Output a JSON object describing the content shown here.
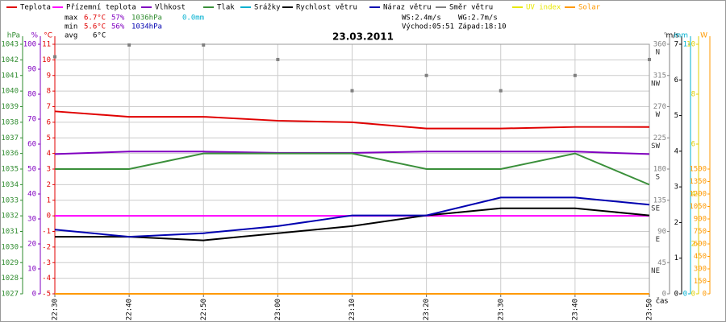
{
  "chart_data": {
    "type": "line",
    "title": "23.03.2011",
    "x_label": "čas",
    "categories": [
      "22:30",
      "22:40",
      "22:50",
      "23:00",
      "23:10",
      "23:20",
      "23:30",
      "23:40",
      "23:50"
    ],
    "grid": true,
    "axes": [
      {
        "id": "press",
        "side": "left",
        "unit": "hPa",
        "color": "#2e8b2e",
        "ylim": [
          1027,
          1043
        ],
        "yticks": [
          1027,
          1028,
          1029,
          1030,
          1031,
          1032,
          1033,
          1034,
          1035,
          1036,
          1037,
          1038,
          1039,
          1040,
          1041,
          1042,
          1043
        ]
      },
      {
        "id": "hum",
        "side": "left",
        "unit": "%",
        "color": "#8000c0",
        "ylim": [
          0,
          100
        ],
        "yticks": [
          0,
          10,
          20,
          30,
          40,
          50,
          60,
          70,
          80,
          90,
          100
        ]
      },
      {
        "id": "temp",
        "side": "left",
        "unit": "°C",
        "color": "#e00000",
        "ylim": [
          -5,
          11
        ],
        "yticks": [
          -5,
          -4,
          -3,
          -2,
          -1,
          0,
          1,
          2,
          3,
          4,
          5,
          6,
          7,
          8,
          9,
          10,
          11
        ]
      },
      {
        "id": "dir",
        "side": "right",
        "unit": "°",
        "color": "#808080",
        "ylim": [
          0,
          360
        ],
        "yticks": [
          0,
          45,
          90,
          135,
          180,
          225,
          270,
          315,
          360
        ],
        "compass": [
          {
            "value": 45,
            "label": "NE"
          },
          {
            "value": 90,
            "label": "E"
          },
          {
            "value": 135,
            "label": "SE"
          },
          {
            "value": 180,
            "label": "S"
          },
          {
            "value": 225,
            "label": "SW"
          },
          {
            "value": 270,
            "label": "W"
          },
          {
            "value": 315,
            "label": "NW"
          },
          {
            "value": 360,
            "label": "N"
          }
        ]
      },
      {
        "id": "wind",
        "side": "right",
        "unit": "m/s",
        "color": "#000000",
        "ylim": [
          0,
          7
        ],
        "yticks": [
          0,
          1,
          2,
          3,
          4,
          5,
          6,
          7
        ]
      },
      {
        "id": "rain",
        "side": "right",
        "unit": "mm",
        "color": "#00b0d0",
        "ylim": [
          0,
          1
        ],
        "yticks": [
          0,
          1
        ]
      },
      {
        "id": "uv",
        "side": "right",
        "color": "#e0d000",
        "ylim": [
          0,
          10
        ],
        "yticks": [
          0,
          2,
          4,
          6,
          8,
          10
        ]
      },
      {
        "id": "solar",
        "side": "right",
        "unit": "W",
        "color": "#ff9900",
        "ylim": [
          0,
          3000
        ],
        "yticks": [
          0,
          150,
          300,
          450,
          600,
          750,
          900,
          1050,
          1200,
          1350,
          1500
        ]
      }
    ],
    "series": [
      {
        "name": "Teplota",
        "color": "#e00000",
        "axis": "temp",
        "values": [
          6.7,
          6.35,
          6.35,
          6.1,
          6.0,
          5.6,
          5.6,
          5.7,
          5.7
        ]
      },
      {
        "name": "Přízemní teplota",
        "color": "#ff00ff",
        "axis": "temp",
        "values": [
          0,
          0,
          0,
          0,
          0,
          0,
          0,
          0,
          0
        ]
      },
      {
        "name": "Vlhkost",
        "color": "#8000c0",
        "axis": "hum",
        "values": [
          56,
          57,
          57,
          56.5,
          56.5,
          57,
          57,
          57,
          56
        ]
      },
      {
        "name": "Tlak",
        "color": "#3a8f3a",
        "axis": "press",
        "values": [
          1035,
          1035,
          1036,
          1036,
          1036,
          1035,
          1035,
          1036,
          1034
        ]
      },
      {
        "name": "Srážky",
        "color": "#00b0d0",
        "axis": "rain",
        "values": [
          0,
          0,
          0,
          0,
          0,
          0,
          0,
          0,
          0
        ]
      },
      {
        "name": "Rychlost větru",
        "color": "#000000",
        "axis": "wind",
        "values": [
          1.6,
          1.6,
          1.5,
          1.7,
          1.9,
          2.2,
          2.4,
          2.4,
          2.2
        ]
      },
      {
        "name": "Náraz větru",
        "color": "#0000b0",
        "axis": "wind",
        "values": [
          1.8,
          1.6,
          1.7,
          1.9,
          2.2,
          2.2,
          2.7,
          2.7,
          2.5
        ]
      },
      {
        "name": "Směr větru",
        "color": "#808080",
        "axis": "dir",
        "style": "dots",
        "values": [
          342,
          359,
          359,
          338,
          293,
          315,
          293,
          315,
          338
        ]
      },
      {
        "name": "UV index",
        "color": "#e8e800",
        "axis": "uv",
        "values": [
          0,
          0,
          0,
          0,
          0,
          0,
          0,
          0,
          0
        ]
      },
      {
        "name": "Solar",
        "color": "#ff9900",
        "axis": "solar",
        "values": [
          0,
          0,
          0,
          0,
          0,
          0,
          0,
          0,
          0
        ]
      }
    ],
    "stats": [
      {
        "label": "max",
        "items": [
          {
            "text": "6.7°C",
            "color": "#e00000"
          },
          {
            "text": "57%",
            "color": "#8000c0"
          },
          {
            "text": "1036hPa",
            "color": "#2e8b2e"
          },
          {
            "text": "0.0mm",
            "color": "#00b0d0"
          }
        ]
      },
      {
        "label": "min",
        "items": [
          {
            "text": "5.6°C",
            "color": "#e00000"
          },
          {
            "text": "56%",
            "color": "#8000c0"
          },
          {
            "text": "1034hPa",
            "color": "#0000b0"
          }
        ]
      },
      {
        "label": "avg",
        "items": [
          {
            "text": "6°C",
            "color": "#000000"
          }
        ]
      }
    ],
    "info": [
      "WS:2.4m/s",
      "WG:2.7m/s",
      "Východ:05:51",
      "Západ:18:10"
    ]
  }
}
